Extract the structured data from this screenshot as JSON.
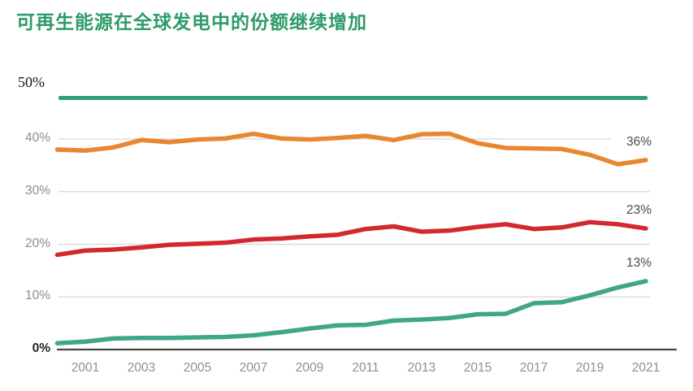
{
  "title": "可再生能源在全球发电中的份额继续增加",
  "chart_data": {
    "type": "line",
    "title": "可再生能源在全球发电中的份额继续增加",
    "unit": "%",
    "x": [
      2000,
      2001,
      2002,
      2003,
      2004,
      2005,
      2006,
      2007,
      2008,
      2009,
      2010,
      2011,
      2012,
      2013,
      2014,
      2015,
      2016,
      2017,
      2018,
      2019,
      2020,
      2021
    ],
    "x_tick_labels": [
      "2001",
      "2003",
      "2005",
      "2007",
      "2009",
      "2011",
      "2013",
      "2015",
      "2017",
      "2019",
      "2021"
    ],
    "y_axis": {
      "ticks": [
        "0%",
        "10%",
        "20%",
        "30%",
        "40%",
        "50%"
      ],
      "tick_values": [
        0,
        10,
        20,
        30,
        40,
        50
      ],
      "range": [
        0,
        50
      ]
    },
    "grid": "horizontal",
    "legend": "none",
    "reference_line": {
      "label": "50%",
      "value": 50,
      "color": "#2EA273"
    },
    "series": [
      {
        "name": "orange-line",
        "color": "#E8872F",
        "end_label": "36%",
        "values": [
          38.0,
          37.8,
          38.4,
          39.8,
          39.4,
          39.9,
          40.1,
          41.0,
          40.1,
          39.9,
          40.2,
          40.6,
          39.8,
          40.9,
          41.0,
          39.2,
          38.3,
          38.2,
          38.1,
          37.0,
          35.2,
          36.0
        ]
      },
      {
        "name": "red-line",
        "color": "#D2282E",
        "end_label": "23%",
        "values": [
          18.0,
          18.8,
          19.0,
          19.4,
          19.9,
          20.1,
          20.3,
          20.9,
          21.1,
          21.5,
          21.8,
          22.9,
          23.4,
          22.4,
          22.6,
          23.3,
          23.8,
          22.9,
          23.2,
          24.2,
          23.8,
          23.0
        ]
      },
      {
        "name": "teal-line",
        "color": "#3FA68C",
        "end_label": "13%",
        "values": [
          1.2,
          1.5,
          2.1,
          2.2,
          2.2,
          2.3,
          2.4,
          2.7,
          3.3,
          4.0,
          4.6,
          4.7,
          5.5,
          5.7,
          6.0,
          6.7,
          6.8,
          8.8,
          9.0,
          10.3,
          11.8,
          13.0
        ]
      }
    ]
  }
}
